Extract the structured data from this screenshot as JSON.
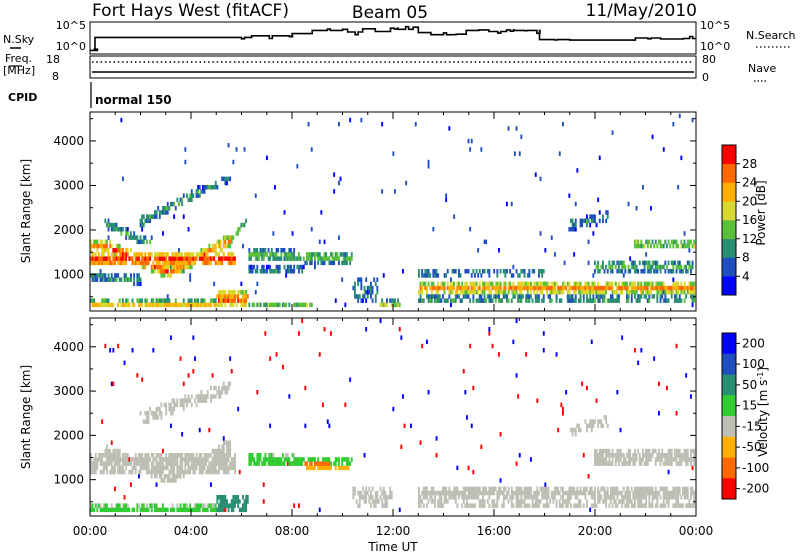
{
  "header": {
    "station": "Fort Hays West (fitACF)",
    "beam": "Beam 05",
    "date": "11/May/2010"
  },
  "strip": {
    "nsky_label": "N.Sky",
    "nsky_top": "10^5",
    "nsky_bottom": "10^0",
    "nsearch_label": "N.Search",
    "nsearch_top": "10^5",
    "nsearch_bottom": "10^0",
    "freq_label_1": "Freq.",
    "freq_label_2": "[MHz]",
    "freq_top": "18",
    "freq_bottom": "8",
    "nave_top": "80",
    "nave_bottom": "0",
    "nave_label": "Nave",
    "cpid_label": "CPID",
    "cpid_value": "normal 150"
  },
  "chart_data": [
    {
      "type": "heatmap",
      "panel": "power",
      "xlabel": "",
      "ylabel": "Slant Range [km]",
      "x_ticks": [
        "00:00",
        "04:00",
        "08:00",
        "12:00",
        "16:00",
        "20:00",
        "00:00"
      ],
      "x_range_hours": [
        0,
        24
      ],
      "y_ticks": [
        "1000",
        "2000",
        "3000",
        "4000"
      ],
      "y_tick_values": [
        1000,
        2000,
        3000,
        4000
      ],
      "ylim": [
        180,
        4650
      ],
      "colorbar": {
        "title": "Power [dB]",
        "ticks": [
          "4",
          "8",
          "12",
          "16",
          "20",
          "24",
          "28"
        ],
        "range": [
          0,
          32
        ],
        "colors": [
          "#0000ff",
          "#1f4fbf",
          "#2a8f72",
          "#5abf3a",
          "#d8d835",
          "#ffb000",
          "#ff6a00",
          "#ff0000"
        ]
      },
      "regions": [
        {
          "t0": 0.0,
          "t1": 5.8,
          "c0": 1350,
          "c1": 1350,
          "w": 330,
          "v": 30,
          "d": 0.95
        },
        {
          "t0": 0.0,
          "t1": 0.6,
          "c0": 1650,
          "c1": 1650,
          "w": 300,
          "v": 24,
          "d": 0.9
        },
        {
          "t0": 0.6,
          "t1": 3.2,
          "c0": 1650,
          "c1": 1050,
          "w": 300,
          "v": 28,
          "d": 0.95
        },
        {
          "t0": 3.2,
          "t1": 5.6,
          "c0": 1050,
          "c1": 1800,
          "w": 280,
          "v": 26,
          "d": 0.95
        },
        {
          "t0": 5.6,
          "t1": 6.2,
          "c0": 1800,
          "c1": 2200,
          "w": 200,
          "v": 14,
          "d": 0.8
        },
        {
          "t0": 0.0,
          "t1": 2.0,
          "c0": 950,
          "c1": 900,
          "w": 220,
          "v": 12,
          "d": 0.85
        },
        {
          "t0": 0.6,
          "t1": 2.4,
          "c0": 2150,
          "c1": 1700,
          "w": 220,
          "v": 12,
          "d": 0.8
        },
        {
          "t0": 2.0,
          "t1": 4.4,
          "c0": 2200,
          "c1": 2900,
          "w": 220,
          "v": 12,
          "d": 0.8
        },
        {
          "t0": 4.4,
          "t1": 5.6,
          "c0": 2900,
          "c1": 3200,
          "w": 160,
          "v": 10,
          "d": 0.7
        },
        {
          "t0": 0.0,
          "t1": 5.0,
          "c0": 330,
          "c1": 330,
          "w": 180,
          "v": 22,
          "d": 0.9
        },
        {
          "t0": 5.0,
          "t1": 6.3,
          "c0": 450,
          "c1": 450,
          "w": 400,
          "v": 28,
          "d": 0.95
        },
        {
          "t0": 6.3,
          "t1": 8.8,
          "c0": 330,
          "c1": 330,
          "w": 160,
          "v": 14,
          "d": 0.7
        },
        {
          "t0": 6.3,
          "t1": 10.4,
          "c0": 1450,
          "c1": 1380,
          "w": 280,
          "v": 14,
          "d": 0.85
        },
        {
          "t0": 6.3,
          "t1": 8.5,
          "c0": 1100,
          "c1": 1100,
          "w": 200,
          "v": 10,
          "d": 0.8
        },
        {
          "t0": 10.4,
          "t1": 11.4,
          "c0": 650,
          "c1": 650,
          "w": 500,
          "v": 10,
          "d": 0.6
        },
        {
          "t0": 11.4,
          "t1": 12.3,
          "c0": 330,
          "c1": 330,
          "w": 180,
          "v": 18,
          "d": 0.8
        },
        {
          "t0": 13.0,
          "t1": 24.0,
          "c0": 700,
          "c1": 700,
          "w": 320,
          "v": 24,
          "d": 0.9
        },
        {
          "t0": 13.0,
          "t1": 24.0,
          "c0": 450,
          "c1": 450,
          "w": 200,
          "v": 12,
          "d": 0.7
        },
        {
          "t0": 13.0,
          "t1": 18.0,
          "c0": 1050,
          "c1": 1050,
          "w": 220,
          "v": 10,
          "d": 0.6
        },
        {
          "t0": 20.0,
          "t1": 24.0,
          "c0": 1200,
          "c1": 1200,
          "w": 250,
          "v": 14,
          "d": 0.7
        },
        {
          "t0": 21.5,
          "t1": 24.0,
          "c0": 1700,
          "c1": 1700,
          "w": 200,
          "v": 18,
          "d": 0.8
        },
        {
          "t0": 19.0,
          "t1": 20.6,
          "c0": 2100,
          "c1": 2350,
          "w": 250,
          "v": 10,
          "d": 0.6
        }
      ]
    },
    {
      "type": "heatmap",
      "panel": "velocity",
      "xlabel": "Time UT",
      "ylabel": "Slant Range [km]",
      "x_ticks": [
        "00:00",
        "04:00",
        "08:00",
        "12:00",
        "16:00",
        "20:00",
        "00:00"
      ],
      "x_range_hours": [
        0,
        24
      ],
      "y_ticks": [
        "1000",
        "2000",
        "3000",
        "4000"
      ],
      "y_tick_values": [
        1000,
        2000,
        3000,
        4000
      ],
      "ylim": [
        180,
        4650
      ],
      "colorbar": {
        "title": "Velocity [m s^-1]",
        "ticks": [
          "200",
          "100",
          "50",
          "15",
          "-15",
          "-50",
          "-100",
          "-200"
        ],
        "colors": [
          "#0000ff",
          "#1f4fbf",
          "#2a8f72",
          "#33cc33",
          "#bfbfb5",
          "#ffb000",
          "#ff6a00",
          "#ff0000"
        ]
      },
      "regions": [
        {
          "t0": 0.0,
          "t1": 5.8,
          "c0": 1400,
          "c1": 1400,
          "w": 450,
          "v": 0,
          "d": 0.95
        },
        {
          "t0": 0.6,
          "t1": 3.2,
          "c0": 1650,
          "c1": 1050,
          "w": 300,
          "v": 5,
          "d": 0.95
        },
        {
          "t0": 3.2,
          "t1": 5.6,
          "c0": 1050,
          "c1": 1800,
          "w": 280,
          "v": -5,
          "d": 0.95
        },
        {
          "t0": 2.0,
          "t1": 5.6,
          "c0": 2400,
          "c1": 3100,
          "w": 300,
          "v": 5,
          "d": 0.8
        },
        {
          "t0": 0.0,
          "t1": 5.0,
          "c0": 330,
          "c1": 330,
          "w": 180,
          "v": 30,
          "d": 0.9
        },
        {
          "t0": 5.0,
          "t1": 6.3,
          "c0": 450,
          "c1": 450,
          "w": 380,
          "v": 60,
          "d": 0.9
        },
        {
          "t0": 6.3,
          "t1": 10.4,
          "c0": 1450,
          "c1": 1380,
          "w": 280,
          "v": 30,
          "d": 0.85
        },
        {
          "t0": 8.5,
          "t1": 10.4,
          "c0": 1350,
          "c1": 1350,
          "w": 200,
          "v": -40,
          "d": 0.9
        },
        {
          "t0": 10.4,
          "t1": 12.0,
          "c0": 600,
          "c1": 600,
          "w": 500,
          "v": 0,
          "d": 0.6
        },
        {
          "t0": 13.0,
          "t1": 24.0,
          "c0": 700,
          "c1": 700,
          "w": 320,
          "v": 0,
          "d": 0.9
        },
        {
          "t0": 13.0,
          "t1": 24.0,
          "c0": 450,
          "c1": 450,
          "w": 200,
          "v": 0,
          "d": 0.6
        },
        {
          "t0": 20.0,
          "t1": 24.0,
          "c0": 1500,
          "c1": 1500,
          "w": 450,
          "v": 0,
          "d": 0.8
        },
        {
          "t0": 19.0,
          "t1": 20.6,
          "c0": 2100,
          "c1": 2350,
          "w": 250,
          "v": 0,
          "d": 0.6
        }
      ]
    },
    {
      "type": "line",
      "panel": "nsky",
      "x_range_hours": [
        0,
        24
      ],
      "ylim": [
        0,
        5
      ],
      "x": [
        0.0,
        0.15,
        0.2,
        5.6,
        6.4,
        7.8,
        8.0,
        8.8,
        10.0,
        10.2,
        10.8,
        11.3,
        11.9,
        12.2,
        12.8,
        13.0,
        13.5,
        14.5,
        14.9,
        15.4,
        15.8,
        16.5,
        16.8,
        17.6,
        17.8,
        19.0,
        21.6,
        22.6,
        23.5,
        24.0
      ],
      "y": [
        0.3,
        0.3,
        2.7,
        2.7,
        3.0,
        3.0,
        3.4,
        4.0,
        4.2,
        3.7,
        4.3,
        3.8,
        4.4,
        4.2,
        4.6,
        3.6,
        3.2,
        3.3,
        4.0,
        4.1,
        3.8,
        4.1,
        4.0,
        4.0,
        2.3,
        2.2,
        2.6,
        2.4,
        2.5,
        2.5
      ]
    },
    {
      "type": "line",
      "panel": "frequency",
      "x_range_hours": [
        0,
        24
      ],
      "ylim": [
        8,
        18
      ],
      "freq_mhz": 10.5,
      "nave": [
        {
          "x": 0.0,
          "y": 60
        },
        {
          "x": 24.0,
          "y": 60
        }
      ]
    }
  ]
}
